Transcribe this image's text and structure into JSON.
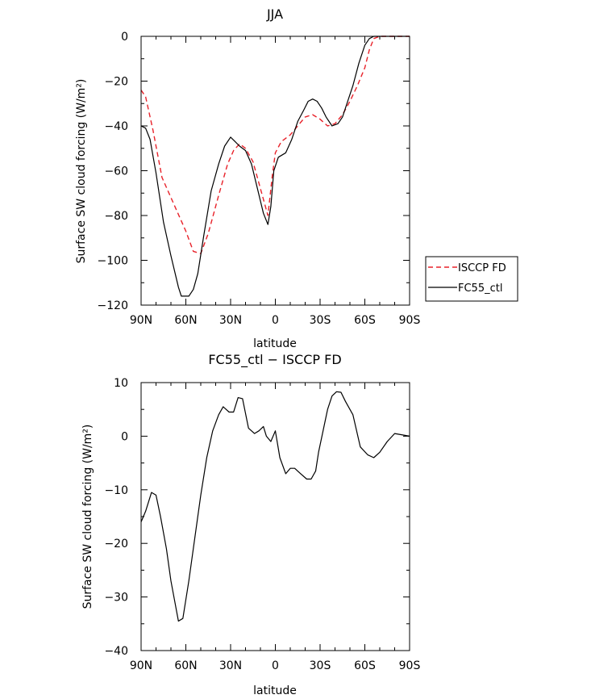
{
  "chart_data": [
    {
      "type": "line",
      "title": "JJA",
      "xlabel": "latitude",
      "ylabel": "Surface SW cloud forcing (W/m²)",
      "xlim": [
        90,
        -90
      ],
      "ylim": [
        -120,
        0
      ],
      "x_ticks": [
        90,
        60,
        30,
        0,
        -30,
        -60,
        -90
      ],
      "x_tick_labels": [
        "90N",
        "60N",
        "30N",
        "0",
        "30S",
        "60S",
        "90S"
      ],
      "y_ticks": [
        0,
        -20,
        -40,
        -60,
        -80,
        -100,
        -120
      ],
      "y_tick_labels": [
        "0",
        "−20",
        "−40",
        "−60",
        "−80",
        "−100",
        "−120"
      ],
      "legend": {
        "position": "right",
        "entries": [
          "ISCCP FD",
          "FC55_ctl"
        ]
      },
      "series": [
        {
          "name": "ISCCP FD",
          "style": "dashed",
          "color": "#e8222a",
          "x": [
            90,
            87,
            82,
            76,
            68,
            60,
            55,
            50,
            45,
            38,
            32,
            28,
            24,
            20,
            15,
            10,
            5,
            2,
            0,
            -4,
            -10,
            -15,
            -20,
            -25,
            -30,
            -35,
            -40,
            -45,
            -50,
            -55,
            -60,
            -63,
            -66,
            -70,
            -75,
            -80,
            -85,
            -90
          ],
          "values": [
            -24,
            -27,
            -42,
            -63,
            -75,
            -87,
            -96,
            -97,
            -88,
            -71,
            -57,
            -51,
            -48,
            -50,
            -56,
            -68,
            -80,
            -62,
            -52,
            -47,
            -44,
            -40,
            -36,
            -35,
            -37,
            -40,
            -39,
            -35,
            -29,
            -22,
            -14,
            -6,
            -1,
            0,
            0,
            0,
            0,
            0
          ]
        },
        {
          "name": "FC55_ctl",
          "style": "solid",
          "color": "#000000",
          "x": [
            90,
            87,
            84,
            80,
            75,
            70,
            65,
            63,
            58,
            55,
            52,
            48,
            43,
            38,
            34,
            30,
            27,
            24,
            20,
            16,
            12,
            8,
            5,
            3,
            1,
            -2,
            -7,
            -11,
            -15,
            -19,
            -22,
            -25,
            -28,
            -31,
            -34,
            -38,
            -42,
            -45,
            -48,
            -52,
            -56,
            -60,
            -63,
            -66,
            -70,
            -75,
            -80,
            -90
          ],
          "values": [
            -40,
            -41,
            -46,
            -61,
            -83,
            -98,
            -112,
            -116,
            -116,
            -113,
            -106,
            -89,
            -69,
            -57,
            -49,
            -45,
            -47,
            -49,
            -51,
            -57,
            -68,
            -79,
            -84,
            -76,
            -60,
            -54,
            -52,
            -46,
            -38,
            -33,
            -29,
            -28,
            -29,
            -32,
            -36,
            -40,
            -39,
            -36,
            -30,
            -22,
            -12,
            -4,
            -1,
            0,
            0,
            0,
            0,
            0
          ]
        }
      ]
    },
    {
      "type": "line",
      "title": "FC55_ctl − ISCCP FD",
      "xlabel": "latitude",
      "ylabel": "Surface SW cloud forcing (W/m²)",
      "xlim": [
        90,
        -90
      ],
      "ylim": [
        -40,
        10
      ],
      "x_ticks": [
        90,
        60,
        30,
        0,
        -30,
        -60,
        -90
      ],
      "x_tick_labels": [
        "90N",
        "60N",
        "30N",
        "0",
        "30S",
        "60S",
        "90S"
      ],
      "y_ticks": [
        10,
        0,
        -10,
        -20,
        -30,
        -40
      ],
      "y_tick_labels": [
        "10",
        "0",
        "−10",
        "−20",
        "−30",
        "−40"
      ],
      "series": [
        {
          "color": "#000000",
          "style": "solid",
          "x": [
            90,
            87,
            83,
            80,
            77,
            73,
            70,
            65,
            62,
            58,
            54,
            50,
            46,
            42,
            38,
            35,
            31,
            28,
            25,
            22,
            18,
            14,
            11,
            8,
            6,
            3,
            0,
            -3,
            -7,
            -10,
            -13,
            -17,
            -21,
            -24,
            -27,
            -29,
            -32,
            -35,
            -38,
            -41,
            -44,
            -47,
            -52,
            -57,
            -62,
            -66,
            -70,
            -75,
            -80,
            -90
          ],
          "values": [
            -16,
            -14,
            -10.5,
            -11,
            -15,
            -21,
            -27,
            -34.5,
            -34,
            -27,
            -19,
            -11,
            -4,
            1,
            4,
            5.5,
            4.5,
            4.5,
            7.2,
            7,
            1.5,
            0.5,
            1,
            1.8,
            0,
            -1,
            1,
            -4,
            -7,
            -6,
            -6,
            -7,
            -8,
            -8,
            -6.5,
            -3,
            1,
            5,
            7.5,
            8.3,
            8.2,
            6.5,
            4,
            -2,
            -3.5,
            -4,
            -3,
            -1,
            0.5,
            0
          ]
        }
      ]
    }
  ]
}
